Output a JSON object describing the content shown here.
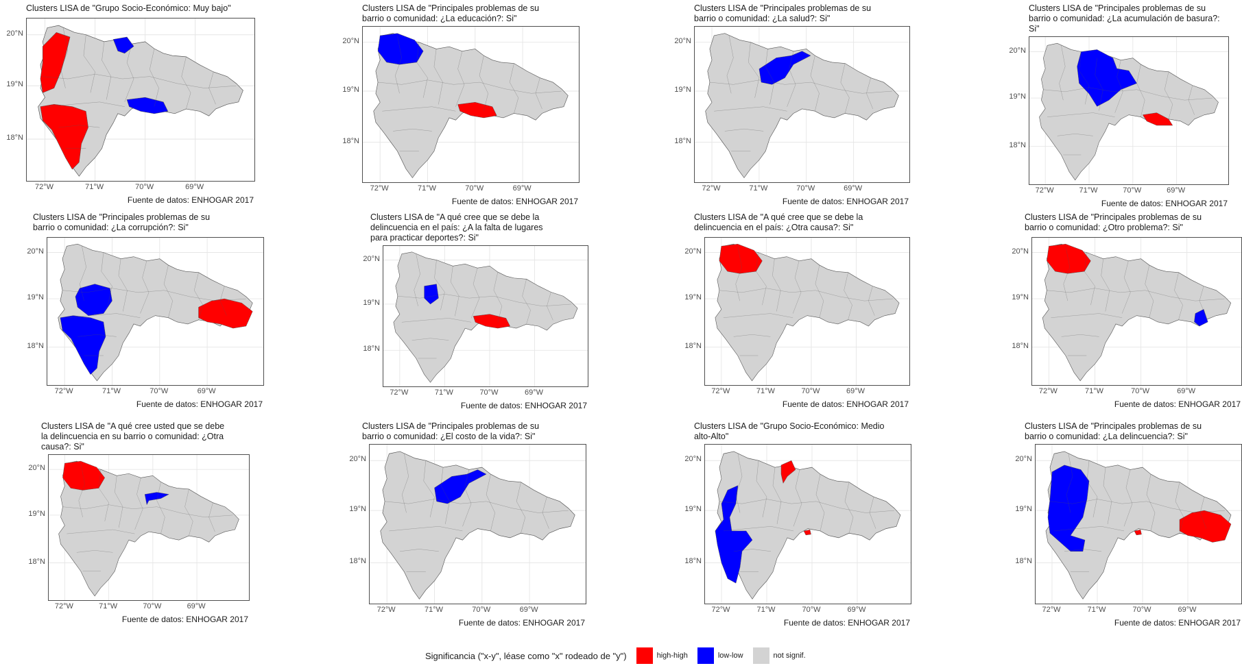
{
  "colors": {
    "high_high": "#ff0000",
    "low_low": "#0000ff",
    "not_signif": "#d3d3d3",
    "grid": "#e6e6e6",
    "border": "#555555"
  },
  "axes": {
    "x_ticks": [
      "72°W",
      "71°W",
      "70°W",
      "69°W"
    ],
    "y_ticks": [
      "20°N",
      "19°N",
      "18°N"
    ]
  },
  "caption": "Fuente de datos: ENHOGAR 2017",
  "legend": {
    "title": "Significancia (\"x-y\", léase como \"x\" rodeado de \"y\")",
    "items": [
      {
        "label": "high-high",
        "color": "#ff0000"
      },
      {
        "label": "low-low",
        "color": "#0000ff"
      },
      {
        "label": "not signif.",
        "color": "#d3d3d3"
      }
    ]
  },
  "maps": [
    {
      "title": "Clusters LISA de \"Grupo Socio-Económico: Muy bajo\"",
      "clusters": [
        {
          "type": "high-high",
          "region": "northwest-border"
        },
        {
          "type": "high-high",
          "region": "southwest"
        },
        {
          "type": "low-low",
          "region": "north-center"
        },
        {
          "type": "low-low",
          "region": "south-center"
        }
      ]
    },
    {
      "title": "Clusters LISA de \"Principales problemas de su\nbarrio o comunidad: ¿La educación?: Si\"",
      "clusters": [
        {
          "type": "low-low",
          "region": "northwest"
        },
        {
          "type": "high-high",
          "region": "south-center"
        }
      ]
    },
    {
      "title": "Clusters LISA de \"Principales problemas de su\nbarrio o comunidad: ¿La salud?: Si\"",
      "clusters": [
        {
          "type": "low-low",
          "region": "cibao-center"
        }
      ]
    },
    {
      "title": "Clusters LISA de \"Principales problemas de su\nbarrio o comunidad: ¿La acumulación de basura?:\nSi\"",
      "clusters": [
        {
          "type": "low-low",
          "region": "north-center-large"
        },
        {
          "type": "high-high",
          "region": "south-center-east"
        }
      ]
    },
    {
      "title": "Clusters LISA de \"Principales problemas de su\nbarrio o comunidad: ¿La corrupción?: Si\"",
      "clusters": [
        {
          "type": "low-low",
          "region": "center-west"
        },
        {
          "type": "low-low",
          "region": "southwest"
        },
        {
          "type": "high-high",
          "region": "east"
        }
      ]
    },
    {
      "title": "Clusters LISA de \"A qué cree que se debe la\ndelincuencia en el país: ¿A la falta de lugares\npara practicar deportes?: Si\"",
      "clusters": [
        {
          "type": "low-low",
          "region": "west-small"
        },
        {
          "type": "high-high",
          "region": "south-center"
        }
      ]
    },
    {
      "title": "Clusters LISA de \"A qué cree que se debe la\ndelincuencia en el país: ¿Otra causa?: Si\"",
      "clusters": [
        {
          "type": "high-high",
          "region": "northwest"
        }
      ]
    },
    {
      "title": "Clusters LISA de \"Principales problemas de su\nbarrio o comunidad: ¿Otro problema?: Si\"",
      "clusters": [
        {
          "type": "high-high",
          "region": "northwest"
        },
        {
          "type": "low-low",
          "region": "southeast"
        }
      ]
    },
    {
      "title": "Clusters LISA de \"A qué cree usted que se debe\nla delincuencia en su barrio o comunidad: ¿Otra\ncausa?: Si\"",
      "clusters": [
        {
          "type": "high-high",
          "region": "northwest"
        },
        {
          "type": "low-low",
          "region": "northeast-small"
        }
      ]
    },
    {
      "title": "Clusters LISA de \"Principales problemas de su\nbarrio o comunidad: ¿El costo de la vida?: Si\"",
      "clusters": [
        {
          "type": "low-low",
          "region": "cibao-center"
        }
      ]
    },
    {
      "title": "Clusters LISA de \"Grupo Socio-Económico: Medio\nalto-Alto\"",
      "clusters": [
        {
          "type": "low-low",
          "region": "west-border"
        },
        {
          "type": "high-high",
          "region": "north-small"
        },
        {
          "type": "high-high",
          "region": "south-small"
        }
      ]
    },
    {
      "title": "Clusters LISA de \"Principales problemas de su\nbarrio o comunidad: ¿La delincuencia?: Si\"",
      "clusters": [
        {
          "type": "low-low",
          "region": "west"
        },
        {
          "type": "high-high",
          "region": "east"
        },
        {
          "type": "high-high",
          "region": "south-small"
        }
      ]
    }
  ]
}
